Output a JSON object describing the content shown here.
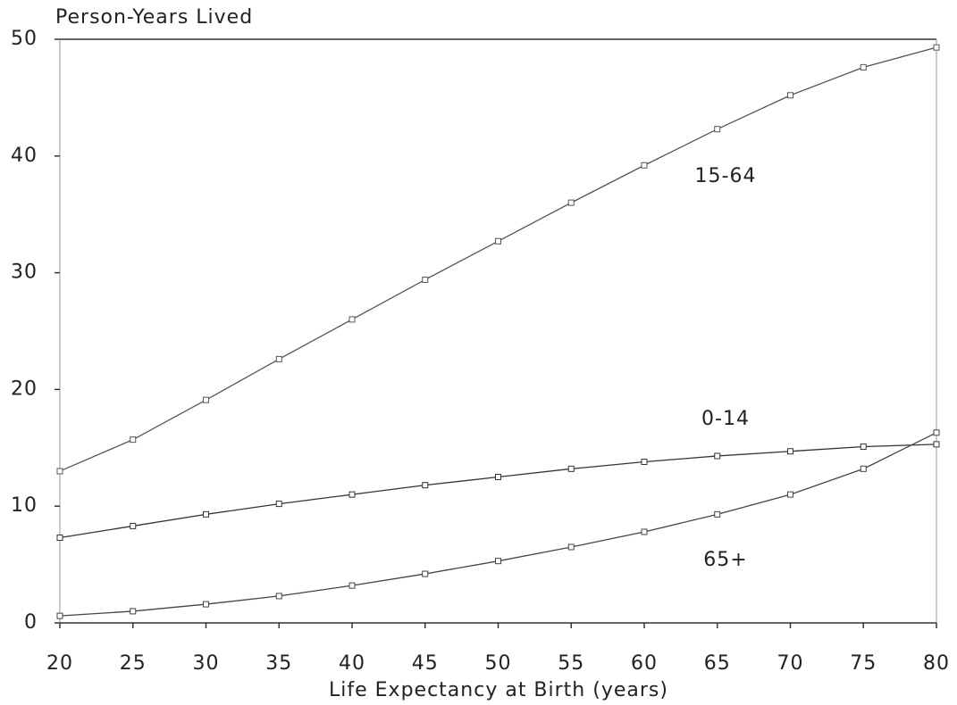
{
  "chart_data": {
    "type": "line",
    "y_label": "Person-Years Lived",
    "x_label": "Life Expectancy at Birth (years)",
    "x": [
      20,
      25,
      30,
      35,
      40,
      45,
      50,
      55,
      60,
      65,
      70,
      75,
      80
    ],
    "series": [
      {
        "name": "15-64",
        "color": "#555",
        "values": [
          13.0,
          15.7,
          19.1,
          22.6,
          26.0,
          29.4,
          32.7,
          36.0,
          39.2,
          42.3,
          45.2,
          47.6,
          49.3
        ]
      },
      {
        "name": "0-14",
        "color": "#333",
        "values": [
          7.3,
          8.3,
          9.3,
          10.2,
          11.0,
          11.8,
          12.5,
          13.2,
          13.8,
          14.3,
          14.7,
          15.1,
          15.3
        ]
      },
      {
        "name": "65+",
        "color": "#444",
        "values": [
          0.6,
          1.0,
          1.6,
          2.3,
          3.2,
          4.2,
          5.3,
          6.5,
          7.8,
          9.3,
          11.0,
          13.2,
          16.3
        ]
      }
    ],
    "xlim": [
      20,
      80
    ],
    "ylim": [
      0,
      50
    ],
    "xticks": [
      20,
      25,
      30,
      35,
      40,
      45,
      50,
      55,
      60,
      65,
      70,
      75,
      80
    ],
    "yticks": [
      0,
      10,
      20,
      30,
      40,
      50
    ]
  }
}
